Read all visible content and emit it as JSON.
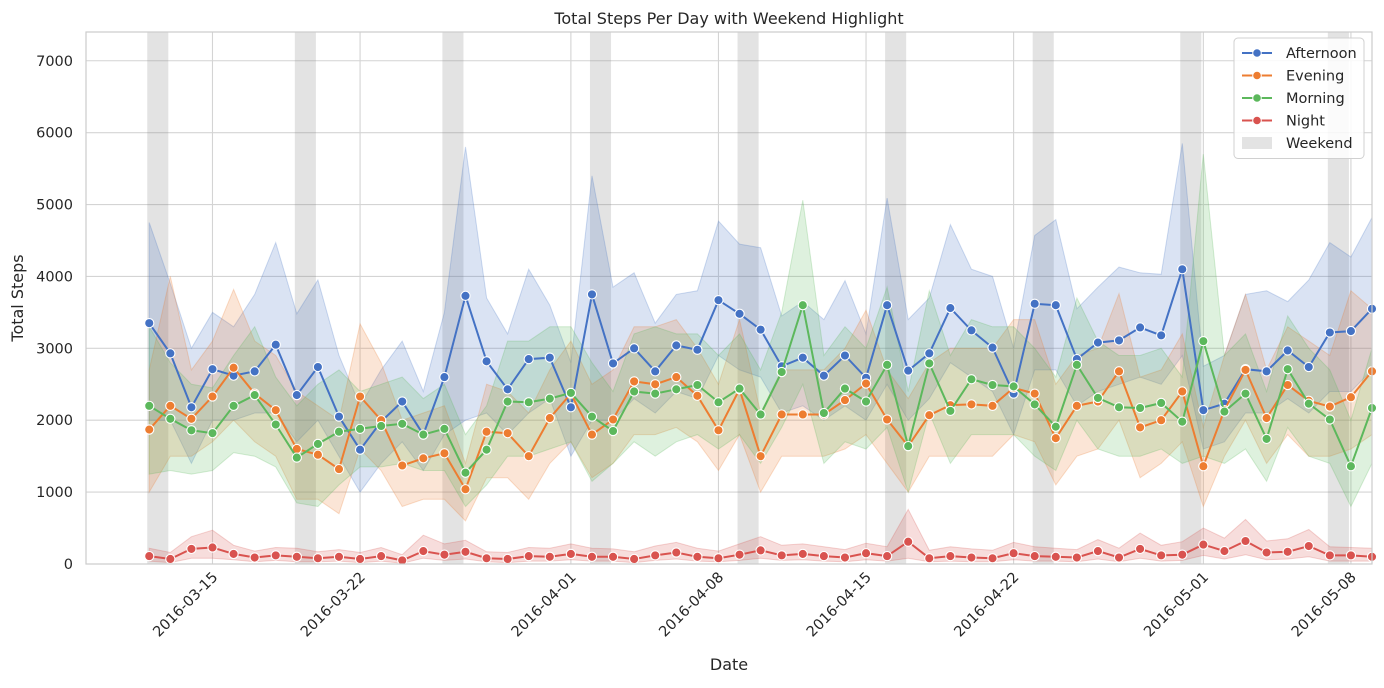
{
  "chart_data": {
    "type": "line",
    "title": "Total Steps Per Day with Weekend Highlight",
    "xlabel": "Date",
    "ylabel": "Total Steps",
    "ylim": [
      0,
      7400
    ],
    "xlim": [
      "2016-03-09",
      "2016-05-09"
    ],
    "grid": true,
    "legend_position": "top-right",
    "x_tick_labels": [
      "2016-03-15",
      "2016-03-22",
      "2016-04-01",
      "2016-04-08",
      "2016-04-15",
      "2016-04-22",
      "2016-05-01",
      "2016-05-08"
    ],
    "y_ticks": [
      0,
      1000,
      2000,
      3000,
      4000,
      5000,
      6000,
      7000
    ],
    "weekend_label": "Weekend",
    "weekend_dates": [
      "2016-03-12",
      "2016-03-19",
      "2016-03-26",
      "2016-04-02",
      "2016-04-09",
      "2016-04-16",
      "2016-04-23",
      "2016-04-30",
      "2016-05-07"
    ],
    "x": [
      "2016-03-12",
      "2016-03-13",
      "2016-03-14",
      "2016-03-15",
      "2016-03-16",
      "2016-03-17",
      "2016-03-18",
      "2016-03-19",
      "2016-03-20",
      "2016-03-21",
      "2016-03-22",
      "2016-03-23",
      "2016-03-24",
      "2016-03-25",
      "2016-03-26",
      "2016-03-27",
      "2016-03-28",
      "2016-03-29",
      "2016-03-30",
      "2016-03-31",
      "2016-04-01",
      "2016-04-02",
      "2016-04-03",
      "2016-04-04",
      "2016-04-05",
      "2016-04-06",
      "2016-04-07",
      "2016-04-08",
      "2016-04-09",
      "2016-04-10",
      "2016-04-11",
      "2016-04-12",
      "2016-04-13",
      "2016-04-14",
      "2016-04-15",
      "2016-04-16",
      "2016-04-17",
      "2016-04-18",
      "2016-04-19",
      "2016-04-20",
      "2016-04-21",
      "2016-04-22",
      "2016-04-23",
      "2016-04-24",
      "2016-04-25",
      "2016-04-26",
      "2016-04-27",
      "2016-04-28",
      "2016-04-29",
      "2016-04-30",
      "2016-05-01",
      "2016-05-02",
      "2016-05-03",
      "2016-05-04",
      "2016-05-05",
      "2016-05-06",
      "2016-05-07",
      "2016-05-08",
      "2016-05-09"
    ],
    "series": [
      {
        "name": "Afternoon",
        "color": "#4472c4",
        "values": [
          3350,
          2930,
          2180,
          2710,
          2620,
          2680,
          3050,
          2350,
          2740,
          2050,
          1590,
          1980,
          2260,
          1800,
          2600,
          3730,
          2820,
          2430,
          2850,
          2870,
          2180,
          3750,
          2790,
          3000,
          2680,
          3040,
          2980,
          3670,
          3480,
          3260,
          2750,
          2870,
          2620,
          2900,
          2590,
          3600,
          2690,
          2930,
          3560,
          3250,
          3010,
          2370,
          3620,
          3600,
          2850,
          3080,
          3110,
          3290,
          3180,
          4100,
          2140,
          2230,
          2710,
          2680,
          2970,
          2740,
          3220,
          3240,
          3550
        ],
        "ci_low": [
          2000,
          2000,
          1400,
          2000,
          2000,
          2100,
          2100,
          1700,
          2000,
          1500,
          1000,
          1400,
          1700,
          1300,
          1800,
          2000,
          2100,
          1800,
          2100,
          2300,
          1500,
          2000,
          2000,
          2300,
          2100,
          2400,
          2300,
          2900,
          2700,
          2600,
          2100,
          2200,
          2000,
          2200,
          2000,
          2500,
          2000,
          2300,
          2800,
          2600,
          2400,
          1800,
          2700,
          2700,
          2200,
          2400,
          2500,
          2600,
          2500,
          2900,
          1600,
          1700,
          2100,
          2100,
          2300,
          2100,
          2400,
          2400,
          2700
        ],
        "ci_high": [
          4750,
          3900,
          3000,
          3500,
          3300,
          3750,
          4470,
          3480,
          3950,
          2900,
          2200,
          2700,
          3100,
          2400,
          3500,
          5800,
          3700,
          3200,
          4100,
          3600,
          2800,
          5400,
          3850,
          4050,
          3350,
          3750,
          3800,
          4770,
          4450,
          4400,
          3450,
          3650,
          3400,
          3940,
          3200,
          5090,
          3400,
          3700,
          4720,
          4100,
          4000,
          3000,
          4570,
          4790,
          3550,
          3850,
          4130,
          4050,
          4030,
          5850,
          2750,
          2900,
          3750,
          3800,
          3650,
          3950,
          4470,
          4270,
          4820
        ]
      },
      {
        "name": "Evening",
        "color": "#ed7d31",
        "values": [
          1870,
          2200,
          2020,
          2330,
          2730,
          2370,
          2140,
          1600,
          1520,
          1320,
          2330,
          2000,
          1370,
          1470,
          1540,
          1040,
          1840,
          1820,
          1500,
          2030,
          2370,
          1800,
          2010,
          2540,
          2500,
          2600,
          2340,
          1860,
          2430,
          1500,
          2080,
          2080,
          2080,
          2280,
          2510,
          2010,
          1640,
          2070,
          2210,
          2220,
          2200,
          2450,
          2370,
          1750,
          2200,
          2260,
          2680,
          1900,
          2000,
          2400,
          1360,
          2140,
          2700,
          2030,
          2490,
          2270,
          2190,
          2320,
          2680
        ],
        "ci_low": [
          1000,
          1500,
          1500,
          1700,
          2000,
          1700,
          1500,
          900,
          900,
          700,
          1600,
          1300,
          800,
          900,
          900,
          600,
          1200,
          1200,
          900,
          1400,
          1700,
          1200,
          1400,
          1800,
          1800,
          1900,
          1700,
          1300,
          1800,
          1000,
          1500,
          1500,
          1500,
          1600,
          1800,
          1400,
          1000,
          1500,
          1500,
          1500,
          1500,
          1800,
          1700,
          1100,
          1500,
          1600,
          2000,
          1200,
          1400,
          1700,
          800,
          1500,
          2000,
          1400,
          1800,
          1500,
          1500,
          1600,
          1800
        ],
        "ci_high": [
          2700,
          4000,
          2700,
          3100,
          3820,
          3100,
          2900,
          2400,
          2200,
          2000,
          3340,
          2800,
          2000,
          2100,
          2200,
          1400,
          2500,
          2400,
          2100,
          2700,
          3100,
          2500,
          2700,
          3300,
          3300,
          3400,
          3000,
          2500,
          3400,
          2100,
          2700,
          2700,
          2700,
          3000,
          3530,
          2700,
          2300,
          2800,
          3000,
          3000,
          3000,
          3400,
          3400,
          2500,
          2900,
          3000,
          3760,
          2600,
          2700,
          3200,
          1900,
          2900,
          3750,
          2700,
          3300,
          3100,
          2900,
          3800,
          3550
        ]
      },
      {
        "name": "Morning",
        "color": "#5cb85c",
        "values": [
          2200,
          2020,
          1860,
          1820,
          2200,
          2350,
          1940,
          1480,
          1670,
          1840,
          1880,
          1920,
          1950,
          1800,
          1880,
          1270,
          1590,
          2260,
          2250,
          2300,
          2380,
          2050,
          1850,
          2400,
          2370,
          2430,
          2490,
          2250,
          2440,
          2080,
          2670,
          3600,
          2100,
          2440,
          2260,
          2770,
          1640,
          2790,
          2130,
          2570,
          2490,
          2470,
          2220,
          1910,
          2770,
          2310,
          2180,
          2170,
          2240,
          1980,
          3100,
          2120,
          2370,
          1740,
          2710,
          2230,
          2010,
          1360,
          2170
        ],
        "ci_low": [
          1250,
          1300,
          1250,
          1300,
          1550,
          1500,
          1350,
          850,
          800,
          1100,
          1350,
          1350,
          1400,
          1300,
          1300,
          800,
          1100,
          1500,
          1500,
          1600,
          1700,
          1150,
          1400,
          1700,
          1500,
          1700,
          1800,
          1600,
          1800,
          1400,
          1900,
          2500,
          1400,
          1700,
          1600,
          1900,
          1000,
          2100,
          1400,
          1800,
          1800,
          1800,
          1500,
          1300,
          2000,
          1600,
          1500,
          1500,
          1600,
          1400,
          1500,
          1400,
          1600,
          1150,
          1900,
          1500,
          1400,
          800,
          1400
        ],
        "ci_high": [
          3300,
          2800,
          2500,
          2450,
          2900,
          3300,
          2600,
          2200,
          2500,
          2700,
          2400,
          2500,
          2600,
          2300,
          2500,
          1800,
          2200,
          3100,
          3100,
          3300,
          3300,
          2800,
          2400,
          3200,
          3300,
          3200,
          3200,
          2900,
          3200,
          2700,
          3500,
          5060,
          2900,
          3300,
          3000,
          3850,
          2400,
          3800,
          2900,
          3400,
          3300,
          3300,
          3000,
          2600,
          3700,
          3100,
          2900,
          2900,
          3000,
          2600,
          5700,
          2900,
          3200,
          2400,
          3450,
          3000,
          2700,
          2000,
          3000
        ]
      },
      {
        "name": "Night",
        "color": "#d9534f",
        "values": [
          110,
          70,
          210,
          230,
          140,
          90,
          120,
          100,
          80,
          100,
          70,
          110,
          50,
          180,
          130,
          170,
          80,
          70,
          110,
          100,
          140,
          100,
          100,
          70,
          120,
          160,
          100,
          80,
          130,
          190,
          120,
          140,
          110,
          90,
          150,
          110,
          310,
          80,
          110,
          90,
          80,
          150,
          110,
          100,
          90,
          180,
          90,
          210,
          120,
          130,
          270,
          180,
          320,
          160,
          170,
          250,
          120,
          120,
          100
        ],
        "ci_low": [
          40,
          20,
          80,
          80,
          60,
          30,
          50,
          30,
          30,
          40,
          20,
          40,
          10,
          80,
          50,
          70,
          30,
          20,
          40,
          40,
          60,
          40,
          40,
          20,
          50,
          70,
          40,
          30,
          50,
          80,
          50,
          60,
          40,
          30,
          60,
          40,
          80,
          30,
          40,
          30,
          30,
          60,
          40,
          40,
          30,
          70,
          30,
          80,
          40,
          50,
          120,
          70,
          130,
          60,
          70,
          100,
          40,
          40,
          40
        ],
        "ci_high": [
          220,
          160,
          380,
          470,
          260,
          180,
          230,
          220,
          170,
          200,
          160,
          230,
          130,
          400,
          280,
          330,
          170,
          160,
          230,
          220,
          280,
          220,
          210,
          170,
          250,
          300,
          220,
          180,
          280,
          380,
          260,
          280,
          240,
          200,
          290,
          240,
          760,
          190,
          240,
          210,
          190,
          300,
          240,
          220,
          200,
          340,
          220,
          430,
          260,
          310,
          500,
          360,
          620,
          320,
          350,
          480,
          240,
          230,
          220
        ]
      }
    ]
  }
}
